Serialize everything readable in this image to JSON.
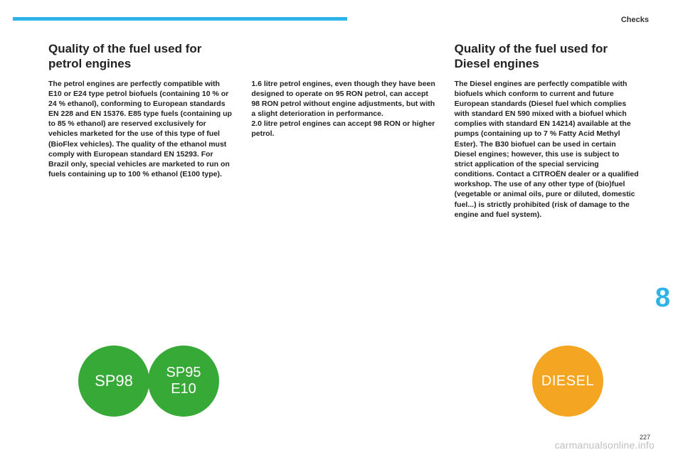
{
  "header": {
    "section": "Checks",
    "accent_color": "#2cb4e8"
  },
  "columns": {
    "left": {
      "title": "Quality of the fuel used for petrol engines",
      "body": "The petrol engines are perfectly compatible with E10 or E24 type petrol biofuels (containing 10 % or 24 % ethanol), conforming to European standards EN 228 and EN 15376. E85 type fuels (containing up to 85 % ethanol) are reserved exclusively for vehicles marketed for the use of this type of fuel (BioFlex vehicles). The quality of the ethanol must comply with European standard EN 15293. For Brazil only, special vehicles are marketed to run on fuels containing up to 100 % ethanol (E100 type)."
    },
    "middle": {
      "body": "1.6 litre petrol engines, even though they have been designed to operate on 95 RON petrol, can accept 98 RON petrol without engine adjustments, but with a slight deterioration in performance.\n2.0 litre petrol engines can accept 98 RON or higher petrol."
    },
    "right": {
      "title": "Quality of the fuel used for Diesel engines",
      "body": "The Diesel engines are perfectly compatible with biofuels which conform to current and future European standards (Diesel fuel which complies with standard EN 590 mixed with a biofuel which complies with standard EN 14214) available at the pumps (containing up to 7 % Fatty Acid Methyl Ester). The B30 biofuel can be used in certain Diesel engines; however, this use is subject to strict application of the special servicing conditions. Contact a CITROËN dealer or a qualified workshop. The use of any other type of (bio)fuel (vegetable or animal oils, pure or diluted, domestic fuel...) is strictly prohibited (risk of damage to the engine and fuel system)."
    }
  },
  "badges": {
    "sp98": {
      "label": "SP98",
      "color": "#37a937"
    },
    "sp95": {
      "label_line1": "SP95",
      "label_line2": "E10",
      "color": "#37a937"
    },
    "diesel": {
      "label": "DIESEL",
      "color": "#f4a623"
    }
  },
  "page": {
    "chapter_number": "8",
    "page_number": "227"
  },
  "watermark": "carmanualsonline.info"
}
